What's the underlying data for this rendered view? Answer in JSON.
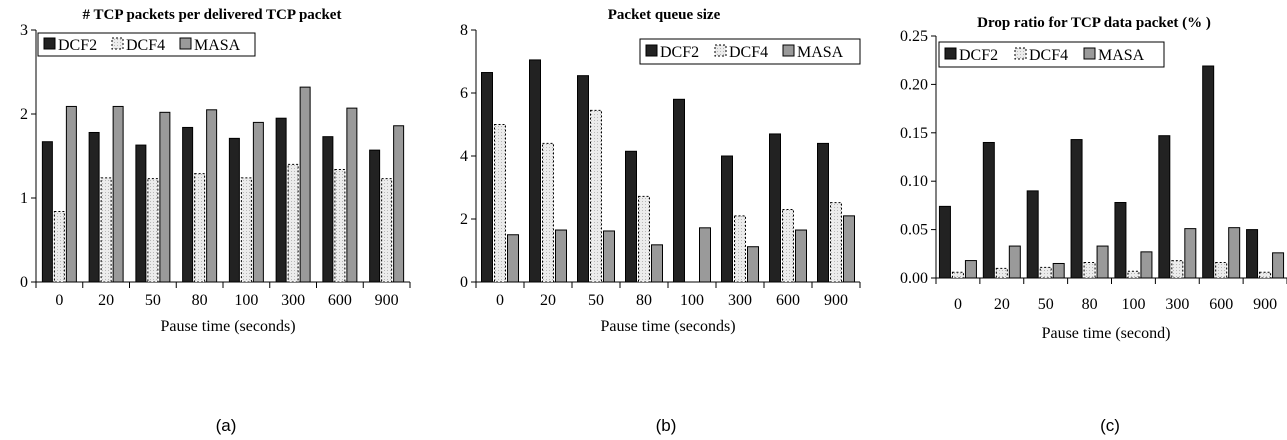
{
  "colors": {
    "DCF2": "#222222",
    "DCF4": "#ebebeb",
    "MASA": "#9a9a9a",
    "axis": "#000000"
  },
  "chart_data": [
    {
      "type": "bar",
      "panel_label": "(a)",
      "title": "# TCP packets per delivered TCP packet",
      "xlabel": "Pause time (seconds)",
      "ylabel": "",
      "categories": [
        "0",
        "20",
        "50",
        "80",
        "100",
        "300",
        "600",
        "900"
      ],
      "ylim": [
        0,
        3
      ],
      "yticks": [
        "0",
        "1",
        "2",
        "3"
      ],
      "yticks_values": [
        0,
        1,
        2,
        3
      ],
      "legend": "top-left",
      "grid": false,
      "series": [
        {
          "name": "DCF2",
          "values": [
            1.67,
            1.78,
            1.63,
            1.84,
            1.71,
            1.95,
            1.73,
            1.57
          ]
        },
        {
          "name": "DCF4",
          "values": [
            0.84,
            1.24,
            1.23,
            1.29,
            1.24,
            1.4,
            1.34,
            1.23
          ]
        },
        {
          "name": "MASA",
          "values": [
            2.09,
            2.09,
            2.02,
            2.05,
            1.9,
            2.32,
            2.07,
            1.86
          ]
        }
      ]
    },
    {
      "type": "bar",
      "panel_label": "(b)",
      "title": "Packet queue size",
      "xlabel": "Pause time (seconds)",
      "ylabel": "",
      "categories": [
        "0",
        "20",
        "50",
        "80",
        "100",
        "300",
        "600",
        "900"
      ],
      "ylim": [
        0,
        8
      ],
      "yticks": [
        "0",
        "2",
        "4",
        "6",
        "8"
      ],
      "yticks_values": [
        0,
        2,
        4,
        6,
        8
      ],
      "legend": "top-right",
      "grid": false,
      "series": [
        {
          "name": "DCF2",
          "values": [
            6.65,
            7.05,
            6.55,
            4.15,
            5.8,
            4.0,
            4.7,
            4.4
          ]
        },
        {
          "name": "DCF4",
          "values": [
            5.0,
            4.4,
            5.45,
            2.72,
            0,
            2.1,
            2.3,
            2.52
          ]
        },
        {
          "name": "MASA",
          "values": [
            1.5,
            1.65,
            1.62,
            1.18,
            1.72,
            1.12,
            1.65,
            2.1
          ]
        }
      ]
    },
    {
      "type": "bar",
      "panel_label": "(c)",
      "title": "Drop ratio for TCP data packet (% )",
      "xlabel": "Pause time (second)",
      "ylabel": "",
      "categories": [
        "0",
        "20",
        "50",
        "80",
        "100",
        "300",
        "600",
        "900"
      ],
      "ylim": [
        0,
        0.25
      ],
      "yticks": [
        "0.00",
        "0.05",
        "0.10",
        "0.15",
        "0.20",
        "0.25"
      ],
      "yticks_values": [
        0,
        0.05,
        0.1,
        0.15,
        0.2,
        0.25
      ],
      "legend": "top-left",
      "grid": false,
      "series": [
        {
          "name": "DCF2",
          "values": [
            0.074,
            0.14,
            0.09,
            0.143,
            0.078,
            0.147,
            0.219,
            0.05
          ]
        },
        {
          "name": "DCF4",
          "values": [
            0.006,
            0.01,
            0.011,
            0.016,
            0.007,
            0.018,
            0.016,
            0.006
          ]
        },
        {
          "name": "MASA",
          "values": [
            0.018,
            0.033,
            0.015,
            0.033,
            0.027,
            0.051,
            0.052,
            0.026
          ]
        }
      ]
    }
  ]
}
